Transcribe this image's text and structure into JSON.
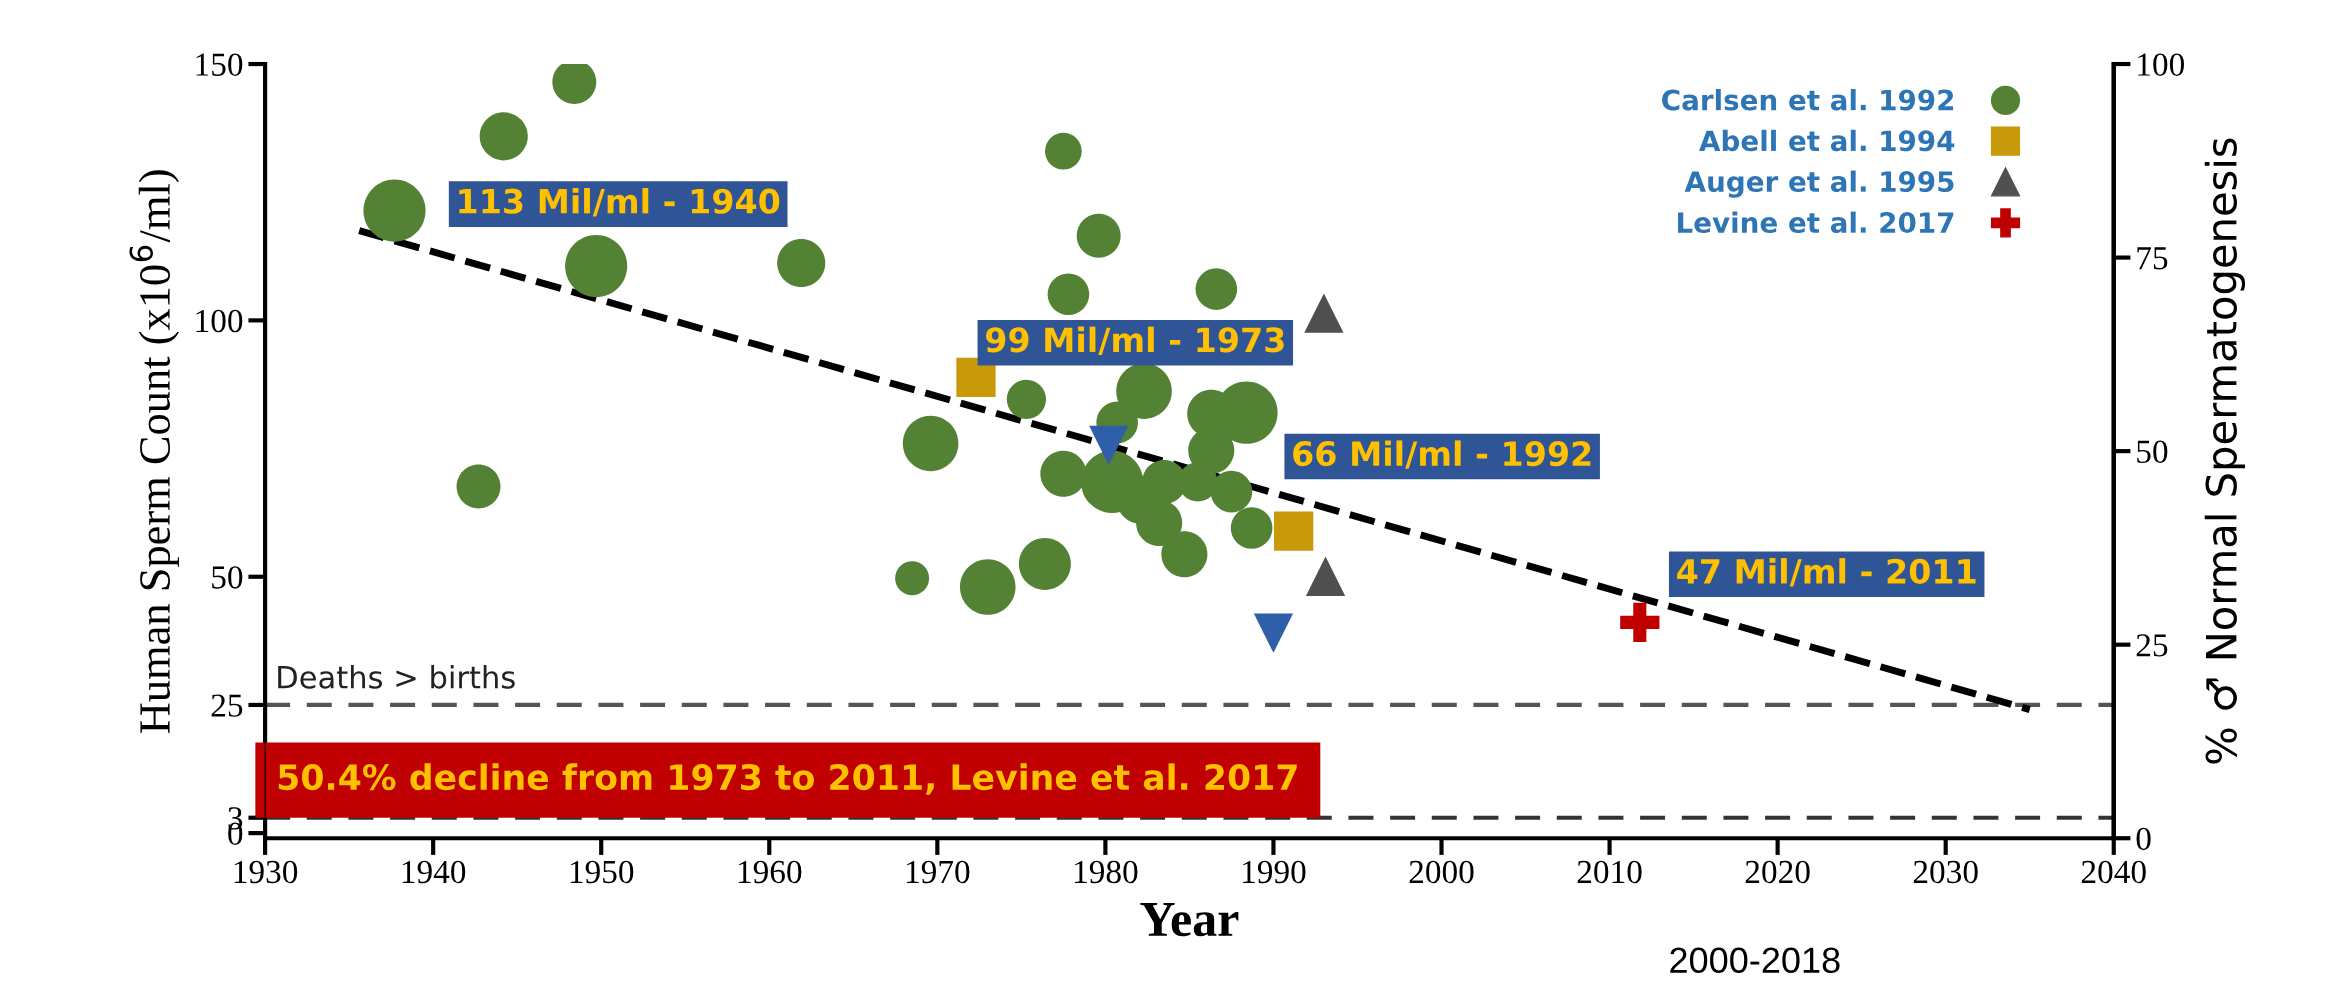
{
  "chart_data": {
    "type": "scatter",
    "xlabel": "Year",
    "ylabel": "Human Sperm Count (x10$^{6}$/ml)",
    "y2label": "% ♂ Normal Spermatogenesis",
    "xlim": [
      1930,
      2040
    ],
    "xticks": [
      1930,
      1940,
      1950,
      1960,
      1970,
      1980,
      1990,
      2000,
      2010,
      2020,
      2030,
      2040
    ],
    "ylim": [
      -1,
      150
    ],
    "yticks": [
      0,
      3,
      25,
      50,
      100,
      150
    ],
    "y2lim": [
      0,
      100
    ],
    "y2ticks": [
      0,
      25,
      50,
      75,
      100
    ],
    "grid": false,
    "legend": "top right",
    "series": [
      {
        "name": "Carlsen et al. 1992",
        "type": "bubble",
        "marker": "circle",
        "color": "#548235",
        "x": [
          1937.7,
          1944.2,
          1948.4,
          1949.7,
          1961.9,
          1942.7,
          1969.6,
          1977.5,
          1979.6,
          1977.8,
          1986.6,
          1975.3,
          1982.3,
          1980.7,
          1977.5,
          1980.4,
          1982.1,
          1983.2,
          1983.5,
          1985.5,
          1987.5,
          1986.3,
          1986.3,
          1988.4,
          1988.7,
          1984.7,
          1976.4,
          1973.0,
          1968.5
        ],
        "values": [
          121.4,
          135.9,
          146.5,
          110.6,
          111.2,
          67.6,
          76.0,
          133.0,
          116.5,
          105.1,
          106.1,
          84.6,
          86.2,
          80.1,
          70.1,
          68.5,
          65.0,
          60.5,
          68.5,
          68.5,
          66.6,
          74.6,
          81.8,
          82.0,
          59.5,
          54.4,
          52.5,
          48.0,
          49.7
        ],
        "sizes": [
          1,
          0.6,
          0.5,
          1,
          0.6,
          0.5,
          0.8,
          0.35,
          0.5,
          0.45,
          0.45,
          0.4,
          0.8,
          0.45,
          0.55,
          1,
          0.6,
          0.55,
          0.5,
          0.4,
          0.45,
          0.55,
          0.6,
          1,
          0.45,
          0.55,
          0.7,
          0.8,
          0.3
        ]
      },
      {
        "name": "Abell et al. 1994",
        "marker": "square",
        "color": "#c89a0a",
        "x": [
          1972.3,
          1991.2
        ],
        "values": [
          88.9,
          58.9
        ]
      },
      {
        "name": "Auger et al. 1995",
        "marker": "triangle",
        "color": "#505050",
        "x": [
          1993.0,
          1993.1
        ],
        "values": [
          101.4,
          50.1
        ]
      },
      {
        "name": "Levine et al. 2017",
        "marker": "cross",
        "color": "#c00000",
        "x": [
          2011.8
        ],
        "values": [
          41.1
        ]
      },
      {
        "marker": "triangle_down",
        "color": "#2e5fa8",
        "x": [
          1980.2,
          1990.0
        ],
        "values": [
          75.6,
          39.0
        ]
      },
      {
        "type": "line",
        "marker": "none",
        "line_style": "dashed",
        "color": "#000000",
        "x": [
          1935.6,
          2035.0
        ],
        "values": [
          117.5,
          24.1
        ]
      }
    ],
    "ref_lines": [
      {
        "axis": "y",
        "value": 25,
        "label": "Deaths > births",
        "color": "#555555",
        "line_style": "dashed"
      },
      {
        "axis": "y",
        "value": 3,
        "label": null,
        "color": "#333333",
        "line_style": "dashed"
      }
    ],
    "annotations": [
      "113 Mil/ml - 1940",
      "99 Mil/ml - 1973",
      "66 Mil/ml - 1992",
      "47 Mil/ml - 2011",
      "50.4% decline from 1973 to 2011, Levine et al. 2017",
      "2000-2018"
    ]
  }
}
